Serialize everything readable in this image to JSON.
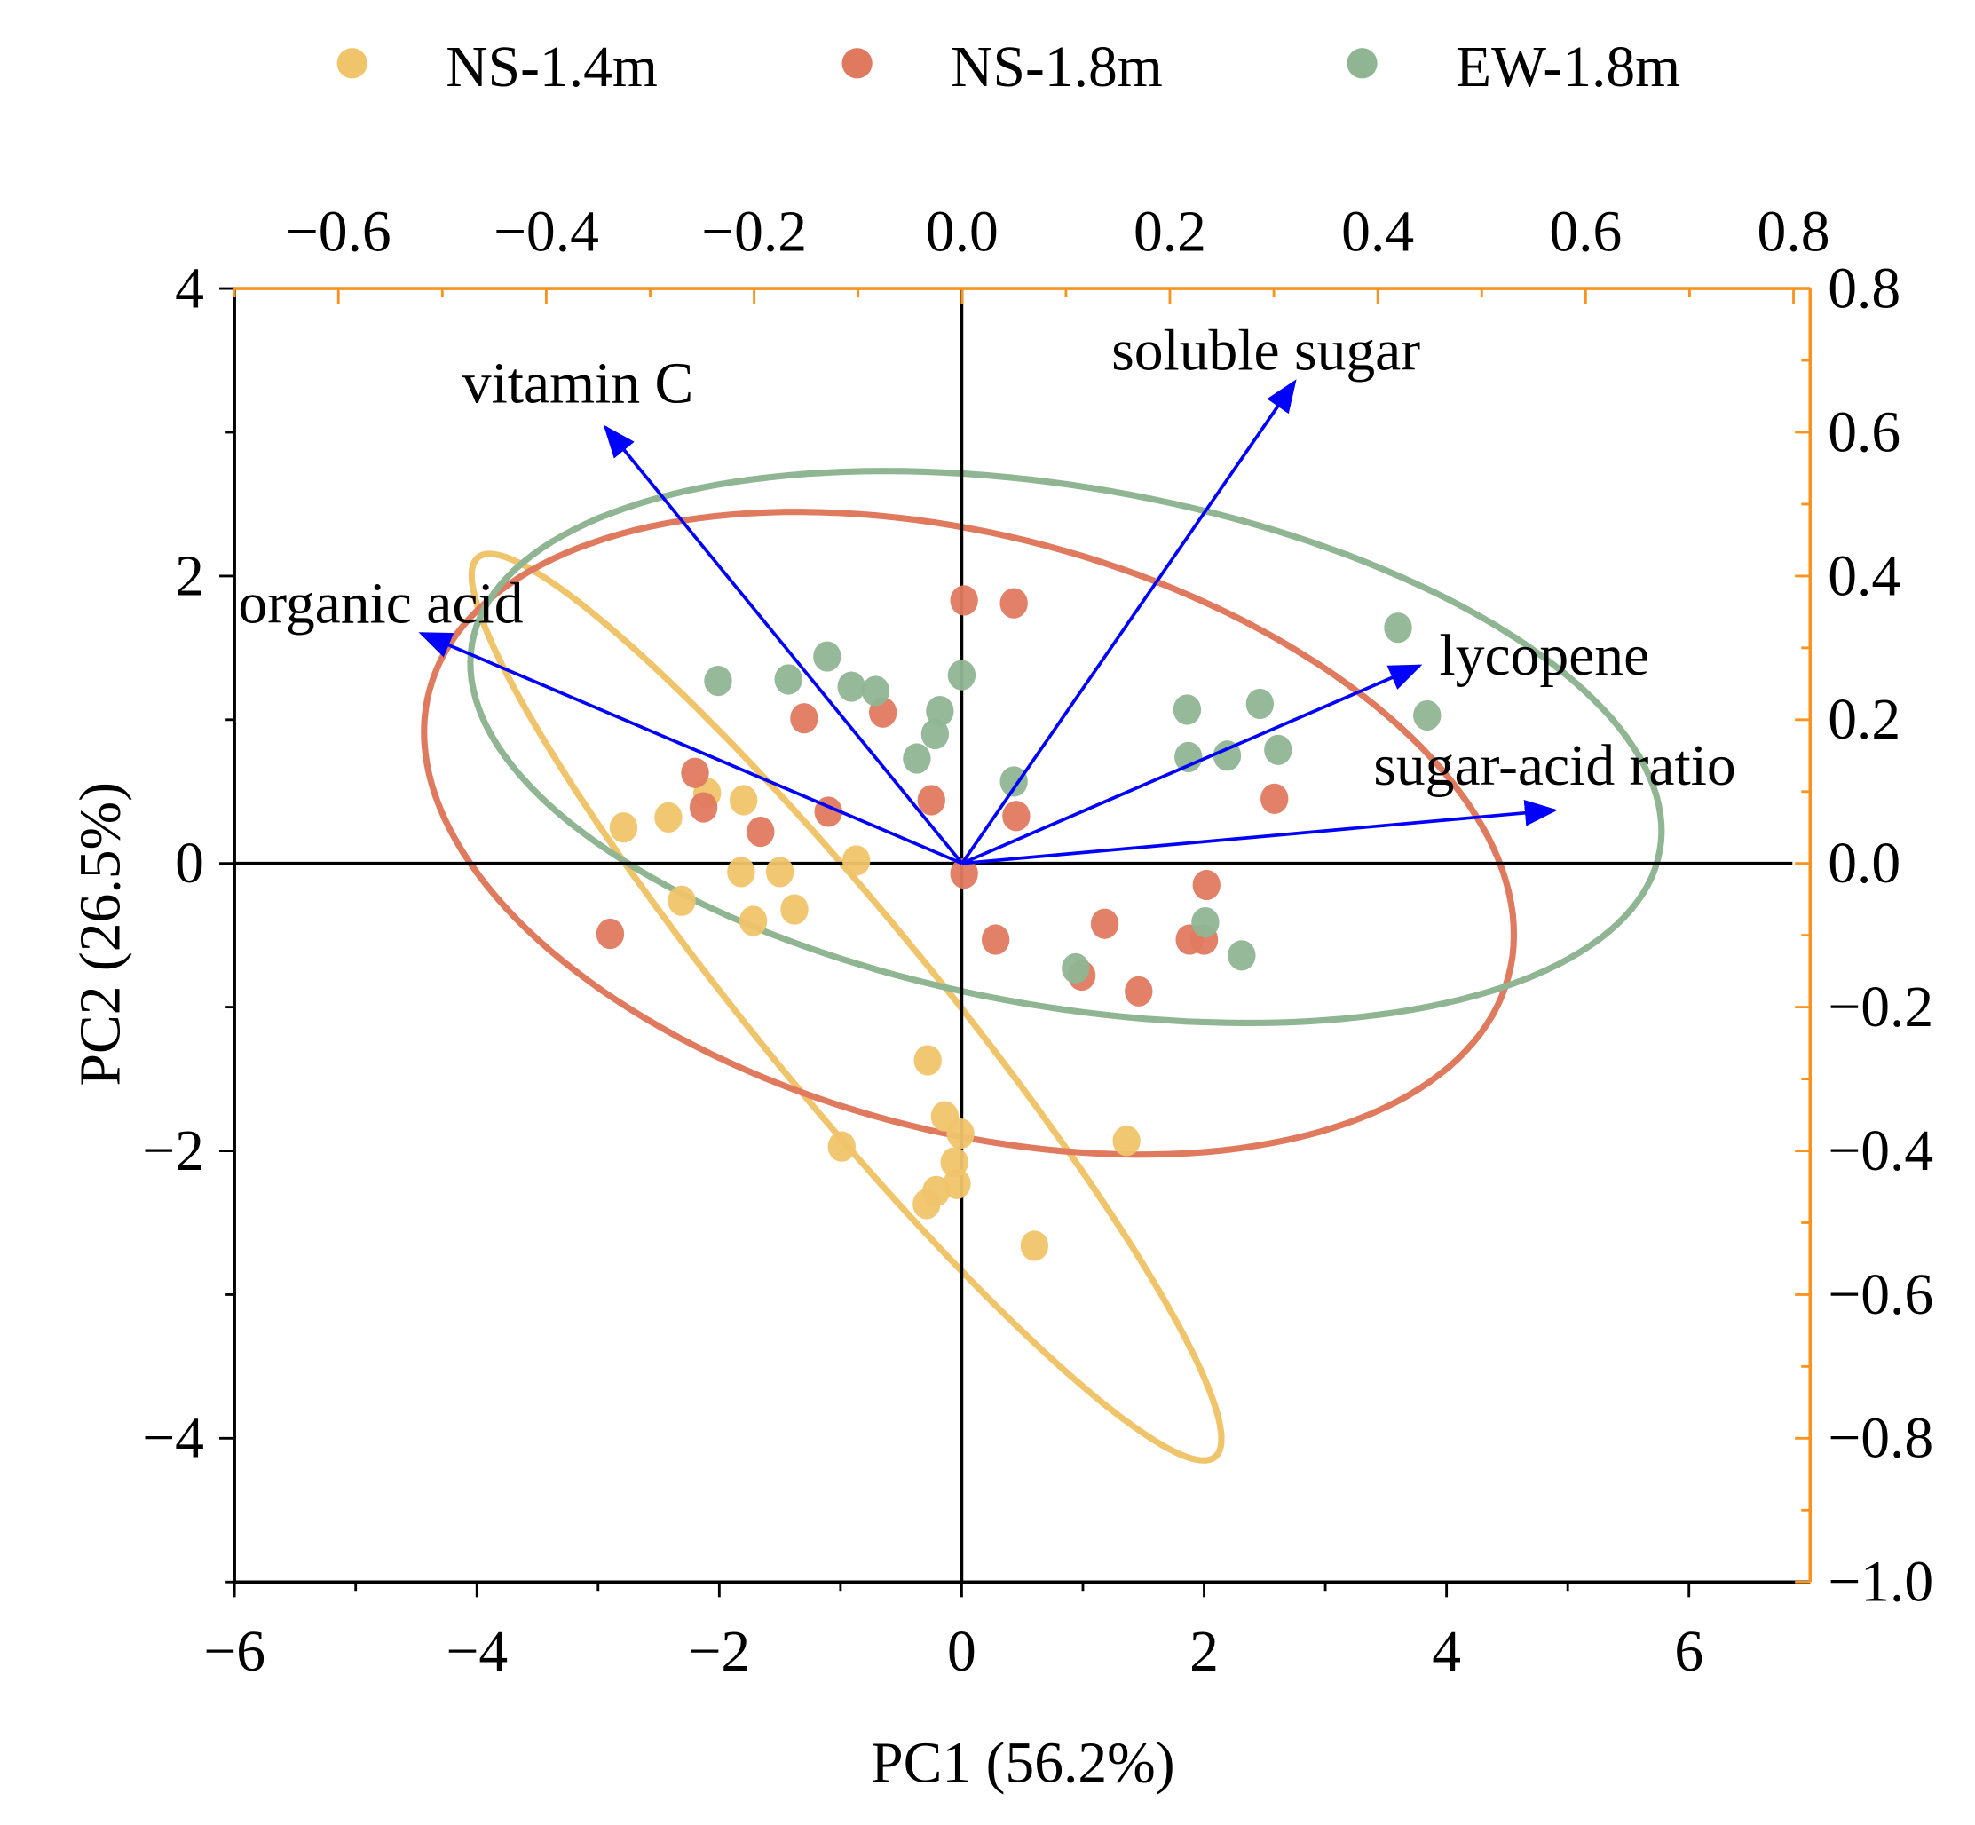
{
  "chart_data": {
    "type": "scatter",
    "subtype": "PCA biplot",
    "xlabel": "PC1 (56.2%)",
    "ylabel": "PC2 (26.5%)",
    "xlim": [
      -6,
      7
    ],
    "ylim": [
      -5,
      4
    ],
    "xticks": [
      -6,
      -4,
      -2,
      0,
      2,
      4,
      6
    ],
    "yticks": [
      -4,
      -2,
      0,
      2,
      4
    ],
    "loading_xlim": [
      -0.7,
      0.816
    ],
    "loading_ylim": [
      -1.0,
      0.8
    ],
    "top_ticks": [
      "−0.6",
      "−0.4",
      "−0.2",
      "0.0",
      "0.2",
      "0.4",
      "0.6",
      "0.8"
    ],
    "top_tick_values": [
      -0.6,
      -0.4,
      -0.2,
      0.0,
      0.2,
      0.4,
      0.6,
      0.8
    ],
    "right_ticks": [
      "0.8",
      "0.6",
      "0.4",
      "0.2",
      "0.0",
      "−0.2",
      "−0.4",
      "−0.6",
      "−0.8",
      "−1.0"
    ],
    "right_tick_values": [
      0.8,
      0.6,
      0.4,
      0.2,
      0.0,
      -0.2,
      -0.4,
      -0.6,
      -0.8,
      -1.0
    ],
    "x_tick_labels": [
      "−6",
      "−4",
      "−2",
      "0",
      "2",
      "4",
      "6"
    ],
    "y_tick_labels": [
      "−4",
      "−2",
      "0",
      "2",
      "4"
    ],
    "legend_position": "top",
    "grid": false,
    "colors": {
      "axis_secondary": "#F7931E",
      "loading_arrow": "#0000FF"
    },
    "series": [
      {
        "name": "NS-1.4m",
        "color": "#F0C46A",
        "points": [
          [
            -2.79,
            0.25
          ],
          [
            -2.42,
            0.32
          ],
          [
            -2.1,
            0.49
          ],
          [
            -1.8,
            0.44
          ],
          [
            -2.31,
            -0.26
          ],
          [
            -1.82,
            -0.06
          ],
          [
            -1.5,
            -0.06
          ],
          [
            -1.72,
            -0.4
          ],
          [
            -1.38,
            -0.32
          ],
          [
            -0.87,
            0.02
          ],
          [
            -0.28,
            -1.37
          ],
          [
            -0.14,
            -1.76
          ],
          [
            -0.01,
            -1.88
          ],
          [
            -0.06,
            -2.08
          ],
          [
            -0.04,
            -2.23
          ],
          [
            -0.21,
            -2.28
          ],
          [
            -0.29,
            -2.37
          ],
          [
            -0.99,
            -1.97
          ],
          [
            0.6,
            -2.66
          ],
          [
            1.36,
            -1.93
          ]
        ],
        "ellipse": {
          "center": [
            -0.95,
            -1.0
          ],
          "axis1": [
            3.04,
            -3.13
          ],
          "axis2": [
            -0.57,
            -0.39
          ]
        }
      },
      {
        "name": "NS-1.8m",
        "color": "#E07A5F",
        "points": [
          [
            0.02,
            1.83
          ],
          [
            0.43,
            1.81
          ],
          [
            -1.3,
            1.01
          ],
          [
            -0.65,
            1.05
          ],
          [
            -2.2,
            0.63
          ],
          [
            -2.13,
            0.39
          ],
          [
            -1.66,
            0.22
          ],
          [
            -1.1,
            0.36
          ],
          [
            -0.25,
            0.44
          ],
          [
            0.45,
            0.33
          ],
          [
            2.58,
            0.45
          ],
          [
            0.02,
            -0.07
          ],
          [
            -2.9,
            -0.49
          ],
          [
            0.28,
            -0.53
          ],
          [
            1.18,
            -0.42
          ],
          [
            2.02,
            -0.15
          ],
          [
            1.88,
            -0.53
          ],
          [
            2.0,
            -0.53
          ],
          [
            0.99,
            -0.78
          ],
          [
            1.46,
            -0.89
          ]
        ],
        "ellipse": {
          "center": [
            0.06,
            0.21
          ],
          "axis1": [
            4.45,
            -1.0
          ],
          "axis2": [
            -0.64,
            -2.0
          ]
        }
      },
      {
        "name": "EW-1.8m",
        "color": "#8FB593",
        "points": [
          [
            -2.01,
            1.27
          ],
          [
            -1.43,
            1.28
          ],
          [
            -1.11,
            1.44
          ],
          [
            -0.91,
            1.23
          ],
          [
            -0.71,
            1.2
          ],
          [
            -0.18,
            1.06
          ],
          [
            -0.22,
            0.9
          ],
          [
            -0.37,
            0.73
          ],
          [
            0.0,
            1.31
          ],
          [
            0.43,
            0.57
          ],
          [
            1.86,
            1.07
          ],
          [
            2.46,
            1.11
          ],
          [
            1.87,
            0.74
          ],
          [
            2.19,
            0.75
          ],
          [
            2.61,
            0.79
          ],
          [
            3.6,
            1.64
          ],
          [
            3.84,
            1.03
          ],
          [
            2.01,
            -0.41
          ],
          [
            2.31,
            -0.64
          ],
          [
            0.94,
            -0.73
          ]
        ],
        "ellipse": {
          "center": [
            0.86,
            0.81
          ],
          "axis1": [
            4.9,
            -0.72
          ],
          "axis2": [
            -0.37,
            -1.78
          ]
        }
      }
    ],
    "loadings": [
      {
        "name": "vitamin C",
        "x": -0.343,
        "y": 0.607
      },
      {
        "name": "soluble sugar",
        "x": 0.32,
        "y": 0.67
      },
      {
        "name": "organic acid",
        "x": -0.52,
        "y": 0.32
      },
      {
        "name": "lycopene",
        "x": 0.44,
        "y": 0.275
      },
      {
        "name": "sugar-acid ratio",
        "x": 0.57,
        "y": 0.074
      }
    ]
  }
}
